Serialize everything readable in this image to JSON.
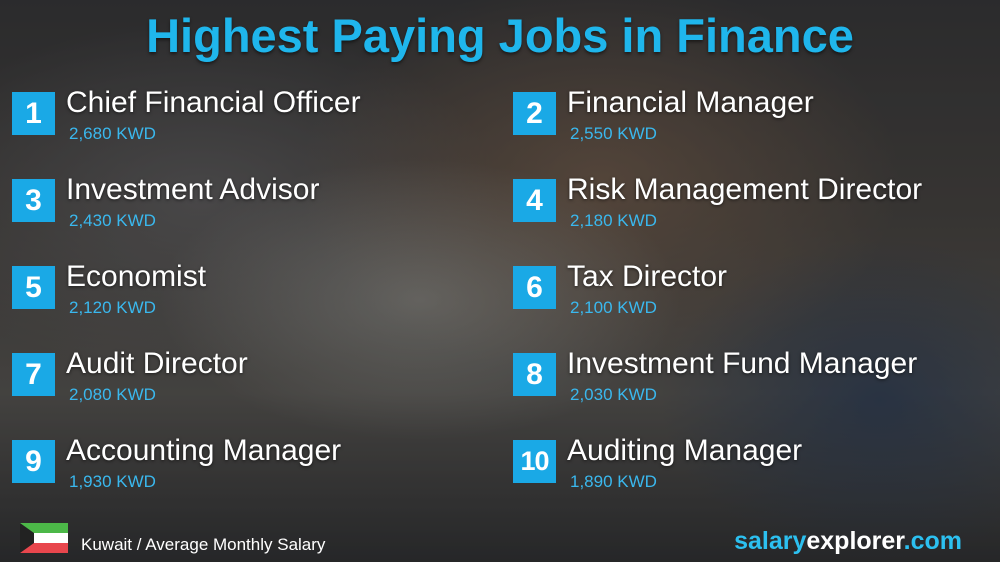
{
  "title": "Highest Paying Jobs in Finance",
  "jobs": [
    {
      "rank": "1",
      "title": "Chief Financial Officer",
      "salary": "2,680 KWD"
    },
    {
      "rank": "2",
      "title": "Financial Manager",
      "salary": "2,550 KWD"
    },
    {
      "rank": "3",
      "title": "Investment Advisor",
      "salary": "2,430 KWD"
    },
    {
      "rank": "4",
      "title": "Risk Management Director",
      "salary": "2,180 KWD"
    },
    {
      "rank": "5",
      "title": "Economist",
      "salary": "2,120 KWD"
    },
    {
      "rank": "6",
      "title": "Tax Director",
      "salary": "2,100 KWD"
    },
    {
      "rank": "7",
      "title": "Audit Director",
      "salary": "2,080 KWD"
    },
    {
      "rank": "8",
      "title": "Investment Fund Manager",
      "salary": "2,030 KWD"
    },
    {
      "rank": "9",
      "title": "Accounting Manager",
      "salary": "1,930 KWD"
    },
    {
      "rank": "10",
      "title": "Auditing Manager",
      "salary": "1,890 KWD"
    }
  ],
  "footer": {
    "caption": "Kuwait / Average Monthly Salary",
    "flag_icon": "kuwait-flag-icon"
  },
  "brand": {
    "part1": "salary",
    "part2": "explorer",
    "part3": ".com"
  },
  "colors": {
    "accent": "#1aa9e6",
    "title": "#1fb6ec"
  }
}
